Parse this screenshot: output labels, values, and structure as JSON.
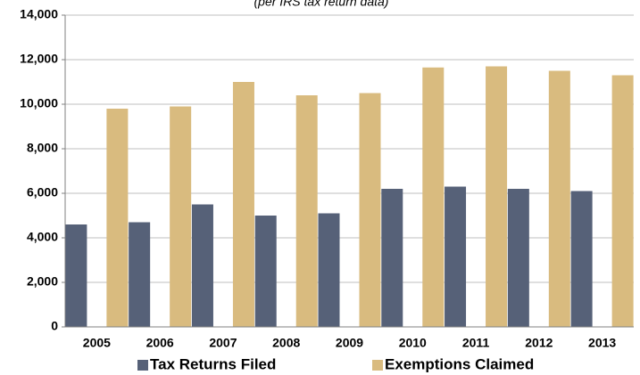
{
  "chart_data": {
    "type": "bar",
    "subtitle": "(per IRS tax return data)",
    "categories": [
      "2005",
      "2006",
      "2007",
      "2008",
      "2009",
      "2010",
      "2011",
      "2012",
      "2013"
    ],
    "series": [
      {
        "name": "Tax Returns Filed",
        "color": "#566178",
        "values": [
          4600,
          4700,
          5500,
          5000,
          5100,
          6200,
          6300,
          6200,
          6100
        ]
      },
      {
        "name": "Exemptions Claimed",
        "color": "#d9bb7f",
        "values": [
          9800,
          9900,
          11000,
          10400,
          10500,
          11650,
          11700,
          11500,
          11300
        ]
      }
    ],
    "ylim": [
      0,
      14000
    ],
    "yticks": [
      0,
      {
        "value": 2000,
        "label": "2,000"
      },
      {
        "value": 4000,
        "label": "4,000"
      },
      {
        "value": 6000,
        "label": "6,000"
      },
      {
        "value": 8000,
        "label": "8,000"
      },
      {
        "value": 10000,
        "label": "10,000"
      },
      {
        "value": 12000,
        "label": "12,000"
      },
      {
        "value": 14000,
        "label": "14,000"
      }
    ],
    "grid": true,
    "legend": "bottom"
  }
}
